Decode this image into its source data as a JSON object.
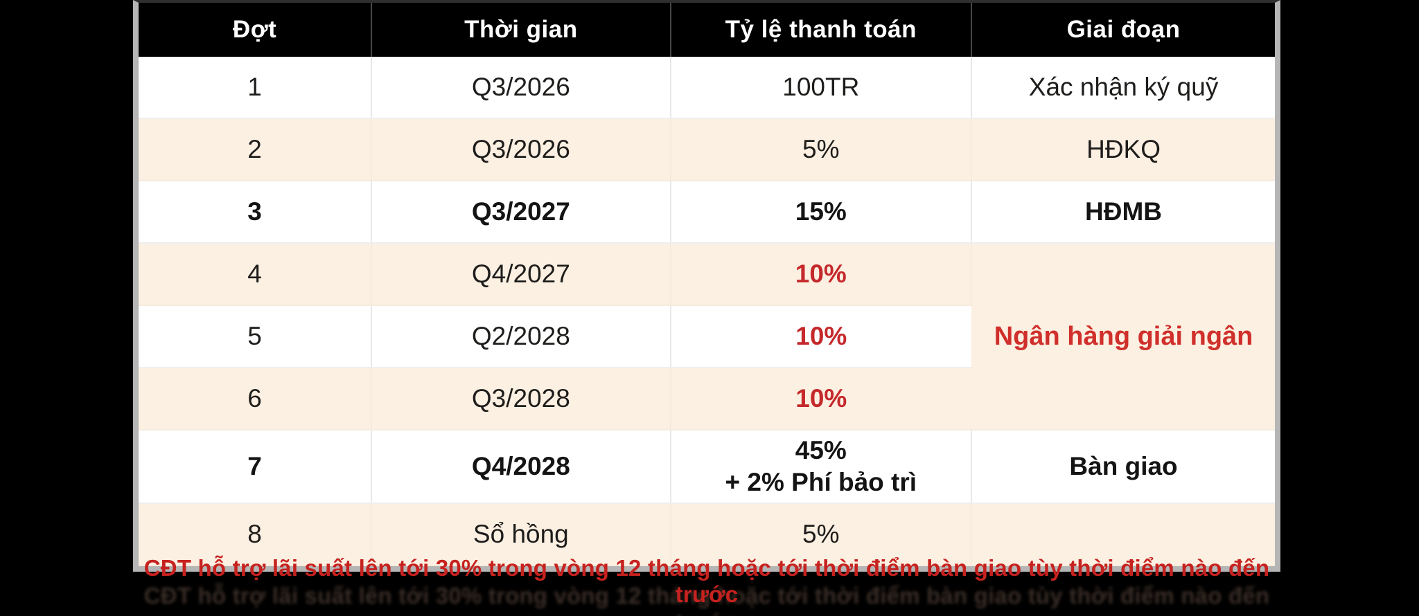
{
  "colors": {
    "page_background": "#000000",
    "header_bg": "#000000",
    "header_text": "#ffffff",
    "stripe_cream": "#fcf0e2",
    "accent_red": "#c5292b",
    "note_red": "#c6221f",
    "table_outer_border": "#b5b5b5"
  },
  "chart_data": {
    "type": "table",
    "title": "",
    "columns": [
      "Đợt",
      "Thời gian",
      "Tỷ lệ thanh toán",
      "Giai đoạn"
    ],
    "rows": [
      {
        "dot": "1",
        "time": "Q3/2026",
        "rate": "100TR",
        "stage": "Xác nhận ký quỹ",
        "bold": false,
        "rate_red": false
      },
      {
        "dot": "2",
        "time": "Q3/2026",
        "rate": "5%",
        "stage": "HĐKQ",
        "bold": false,
        "rate_red": false
      },
      {
        "dot": "3",
        "time": "Q3/2027",
        "rate": "15%",
        "stage": "HĐMB",
        "bold": true,
        "rate_red": false
      },
      {
        "dot": "4",
        "time": "Q4/2027",
        "rate": "10%",
        "bold": false,
        "rate_red": true
      },
      {
        "dot": "5",
        "time": "Q2/2028",
        "rate": "10%",
        "bold": false,
        "rate_red": true
      },
      {
        "dot": "6",
        "time": "Q3/2028",
        "rate": "10%",
        "bold": false,
        "rate_red": true
      },
      {
        "dot": "7",
        "time": "Q4/2028",
        "rate_line1": "45%",
        "rate_line2": "+ 2% Phí bảo trì",
        "stage": "Bàn giao",
        "bold": true,
        "rate_red": false
      },
      {
        "dot": "8",
        "time": "Sổ hồng",
        "rate": "5%",
        "stage": "",
        "bold": false,
        "rate_red": false
      }
    ],
    "merged_stage": {
      "label": "Ngân hàng giải ngân",
      "applies_to_rows": [
        4,
        5,
        6
      ]
    },
    "footnote": "CĐT hỗ trợ lãi suất lên tới 30% trong vòng 12 tháng hoặc tới thời điểm bàn giao tùy thời điểm nào đến trước",
    "layout_hints": {
      "header_style": "black background, white bold text",
      "zebra": "odd rows white, even rows cream",
      "grid": "light gray hairlines, thick gray outer border"
    }
  }
}
